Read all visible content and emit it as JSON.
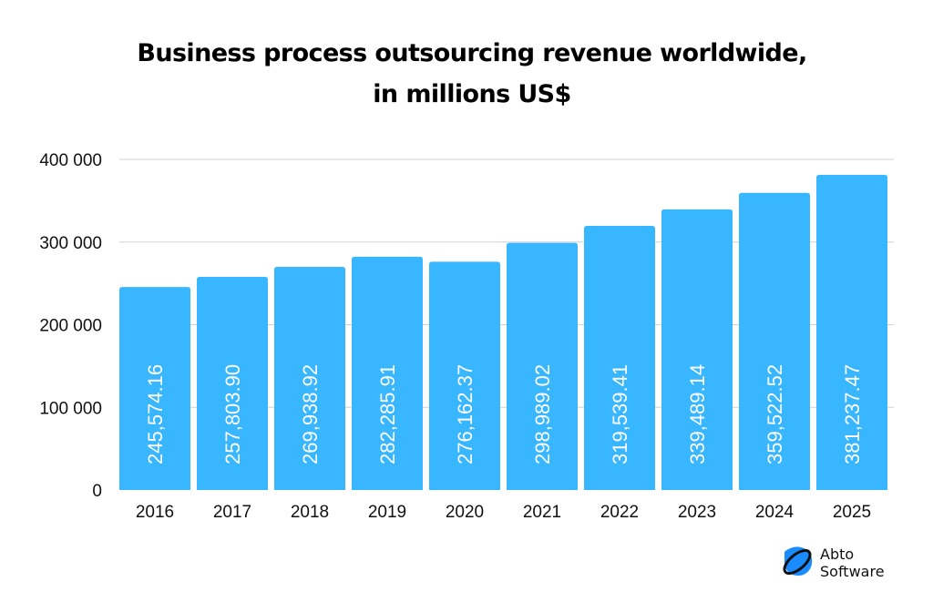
{
  "chart_data": {
    "type": "bar",
    "title_lines": [
      "Business process outsourcing revenue worldwide,",
      "in millions US$"
    ],
    "categories": [
      "2016",
      "2017",
      "2018",
      "2019",
      "2020",
      "2021",
      "2022",
      "2023",
      "2024",
      "2025"
    ],
    "values": [
      245574.16,
      257803.9,
      269938.92,
      282285.91,
      276162.37,
      298989.02,
      319539.41,
      339489.14,
      359522.52,
      381237.47
    ],
    "value_labels": [
      "245,574.16",
      "257,803.90",
      "269,938.92",
      "282,285.91",
      "276,162.37",
      "298,989.02",
      "319,539.41",
      "339,489.14",
      "359,522.52",
      "381,237.47"
    ],
    "yticks": [
      0,
      100000,
      200000,
      300000,
      400000
    ],
    "ytick_labels": [
      "0",
      "100 000",
      "200 000",
      "300 000",
      "400 000"
    ],
    "ylim": [
      0,
      400000
    ],
    "grid": true,
    "bar_color": "#38b6ff",
    "grid_color": "#d0d0d0"
  },
  "logo": {
    "line1": "Abto",
    "line2": "Software",
    "icon": "abto-software-logo-icon",
    "color_primary": "#1a8cff",
    "color_dark": "#111111"
  }
}
